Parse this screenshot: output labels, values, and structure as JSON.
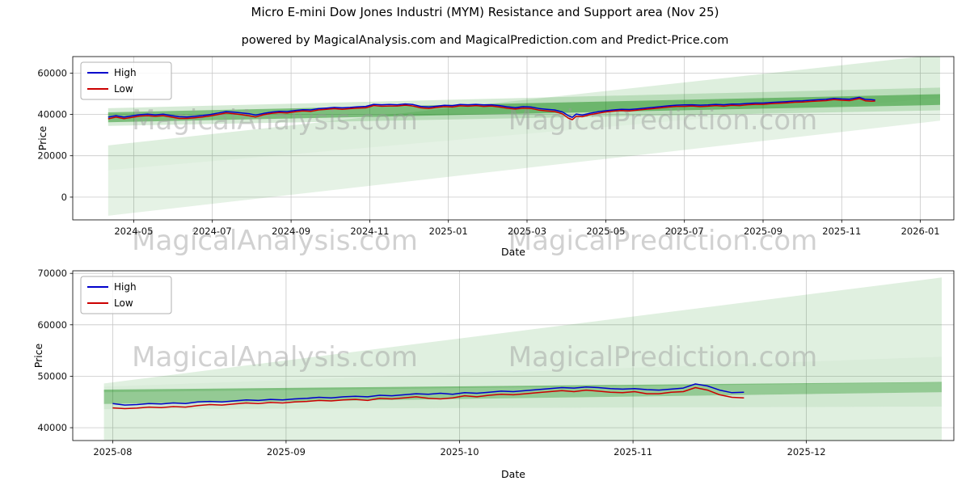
{
  "figure": {
    "title": "Micro E-mini Dow Jones Industri (MYM) Resistance and Support area (Nov 25)",
    "subtitle": "powered by MagicalAnalysis.com and MagicalPrediction.com and Predict-Price.com"
  },
  "watermarks": {
    "analysis": "MagicalAnalysis.com",
    "prediction": "MagicalPrediction.com"
  },
  "colors": {
    "high": "#0000cc",
    "low": "#cc0000",
    "band": "#008000",
    "grid": "#c8c8c8",
    "watermark": "#999999",
    "spine": "#000000"
  },
  "chart_data": [
    {
      "type": "line",
      "name": "price-history-full",
      "xlabel": "Date",
      "ylabel": "Price",
      "xlim": [
        2.45,
        24.85
      ],
      "ylim": [
        -11000,
        68000
      ],
      "legend": [
        "High",
        "Low"
      ],
      "xticks": [
        {
          "v": 4,
          "label": "2024-05"
        },
        {
          "v": 6,
          "label": "2024-07"
        },
        {
          "v": 8,
          "label": "2024-09"
        },
        {
          "v": 10,
          "label": "2024-11"
        },
        {
          "v": 12,
          "label": "2025-01"
        },
        {
          "v": 14,
          "label": "2025-03"
        },
        {
          "v": 16,
          "label": "2025-05"
        },
        {
          "v": 18,
          "label": "2025-07"
        },
        {
          "v": 20,
          "label": "2025-09"
        },
        {
          "v": 22,
          "label": "2025-11"
        },
        {
          "v": 24,
          "label": "2026-01"
        }
      ],
      "yticks": [
        {
          "v": 0,
          "label": "0"
        },
        {
          "v": 20000,
          "label": "20000"
        },
        {
          "v": 40000,
          "label": "40000"
        },
        {
          "v": 60000,
          "label": "60000"
        }
      ],
      "bands": [
        {
          "x": [
            3.35,
            24.5
          ],
          "top": [
            25000,
            69000
          ],
          "bottom": [
            13000,
            48000
          ],
          "opacity": 0.13
        },
        {
          "x": [
            3.35,
            24.5
          ],
          "top": [
            13000,
            48000
          ],
          "bottom": [
            -9000,
            37000
          ],
          "opacity": 0.1
        },
        {
          "x": [
            3.35,
            24.5
          ],
          "top": [
            43000,
            53000
          ],
          "bottom": [
            34500,
            42000
          ],
          "opacity": 0.16
        },
        {
          "x": [
            3.35,
            24.5
          ],
          "top": [
            41000,
            49800
          ],
          "bottom": [
            36200,
            44600
          ],
          "opacity": 0.42
        }
      ],
      "series": [
        {
          "name": "High",
          "colorKey": "high"
        },
        {
          "name": "Low",
          "colorKey": "low"
        }
      ],
      "points": [
        [
          3.35,
          38700,
          37900
        ],
        [
          3.55,
          39400,
          38700
        ],
        [
          3.75,
          38700,
          38000
        ],
        [
          3.95,
          39300,
          38600
        ],
        [
          4.15,
          39900,
          39200
        ],
        [
          4.35,
          40100,
          39400
        ],
        [
          4.55,
          39800,
          39100
        ],
        [
          4.75,
          40100,
          39400
        ],
        [
          4.95,
          39500,
          38800
        ],
        [
          5.15,
          38900,
          38100
        ],
        [
          5.35,
          38800,
          38100
        ],
        [
          5.55,
          39100,
          38400
        ],
        [
          5.75,
          39500,
          38800
        ],
        [
          5.95,
          40000,
          39300
        ],
        [
          6.15,
          40700,
          40000
        ],
        [
          6.35,
          41400,
          40700
        ],
        [
          6.55,
          41100,
          40300
        ],
        [
          6.75,
          40700,
          39900
        ],
        [
          6.95,
          40300,
          39300
        ],
        [
          7.1,
          39700,
          38800
        ],
        [
          7.3,
          40500,
          39900
        ],
        [
          7.5,
          41100,
          40500
        ],
        [
          7.7,
          41500,
          40900
        ],
        [
          7.9,
          41400,
          40700
        ],
        [
          8.1,
          41900,
          41300
        ],
        [
          8.3,
          42300,
          41700
        ],
        [
          8.5,
          42200,
          41500
        ],
        [
          8.7,
          42800,
          42200
        ],
        [
          8.9,
          43100,
          42500
        ],
        [
          9.1,
          43400,
          42800
        ],
        [
          9.3,
          43200,
          42500
        ],
        [
          9.5,
          43400,
          42800
        ],
        [
          9.7,
          43700,
          43100
        ],
        [
          9.9,
          43900,
          43200
        ],
        [
          10.1,
          44900,
          44300
        ],
        [
          10.3,
          44700,
          44000
        ],
        [
          10.5,
          44800,
          44100
        ],
        [
          10.7,
          44700,
          44100
        ],
        [
          10.9,
          45100,
          44500
        ],
        [
          11.1,
          44800,
          44100
        ],
        [
          11.3,
          43900,
          43200
        ],
        [
          11.5,
          43600,
          42900
        ],
        [
          11.7,
          44000,
          43400
        ],
        [
          11.9,
          44400,
          43800
        ],
        [
          12.1,
          44300,
          43600
        ],
        [
          12.3,
          44800,
          44200
        ],
        [
          12.5,
          44700,
          44000
        ],
        [
          12.7,
          44900,
          44300
        ],
        [
          12.9,
          44600,
          43900
        ],
        [
          13.1,
          44700,
          44100
        ],
        [
          13.3,
          44300,
          43600
        ],
        [
          13.5,
          43700,
          43000
        ],
        [
          13.7,
          43300,
          42600
        ],
        [
          13.9,
          43800,
          43100
        ],
        [
          14.1,
          43600,
          42900
        ],
        [
          14.3,
          42900,
          42100
        ],
        [
          14.5,
          42500,
          41700
        ],
        [
          14.7,
          42200,
          41400
        ],
        [
          14.9,
          41200,
          40300
        ],
        [
          15.05,
          39400,
          38200
        ],
        [
          15.15,
          38600,
          37500
        ],
        [
          15.25,
          40200,
          39100
        ],
        [
          15.4,
          39700,
          38900
        ],
        [
          15.6,
          40600,
          39900
        ],
        [
          15.8,
          41300,
          40600
        ],
        [
          16.0,
          41800,
          41200
        ],
        [
          16.2,
          42200,
          41600
        ],
        [
          16.4,
          42500,
          41900
        ],
        [
          16.6,
          42400,
          41700
        ],
        [
          16.8,
          42700,
          42100
        ],
        [
          17.0,
          43100,
          42500
        ],
        [
          17.2,
          43400,
          42800
        ],
        [
          17.4,
          43800,
          43200
        ],
        [
          17.6,
          44200,
          43600
        ],
        [
          17.8,
          44500,
          43900
        ],
        [
          18.0,
          44600,
          43900
        ],
        [
          18.2,
          44700,
          44100
        ],
        [
          18.4,
          44500,
          43800
        ],
        [
          18.6,
          44600,
          44000
        ],
        [
          18.8,
          44900,
          44300
        ],
        [
          19.0,
          44700,
          44000
        ],
        [
          19.2,
          45000,
          44400
        ],
        [
          19.4,
          45000,
          44300
        ],
        [
          19.6,
          45300,
          44700
        ],
        [
          19.8,
          45500,
          44900
        ],
        [
          20.0,
          45500,
          44900
        ],
        [
          20.2,
          45800,
          45200
        ],
        [
          20.4,
          46000,
          45400
        ],
        [
          20.6,
          46200,
          45600
        ],
        [
          20.8,
          46500,
          45900
        ],
        [
          21.0,
          46600,
          46000
        ],
        [
          21.2,
          46900,
          46300
        ],
        [
          21.4,
          47100,
          46500
        ],
        [
          21.6,
          47300,
          46700
        ],
        [
          21.8,
          47800,
          47200
        ],
        [
          22.0,
          47500,
          46900
        ],
        [
          22.2,
          47400,
          46700
        ],
        [
          22.45,
          48300,
          47700
        ],
        [
          22.6,
          47300,
          46600
        ],
        [
          22.75,
          47200,
          46400
        ],
        [
          22.85,
          47000,
          46500
        ]
      ]
    },
    {
      "type": "line",
      "name": "price-history-recent",
      "xlabel": "Date",
      "ylabel": "Price",
      "xlim": [
        18.77,
        23.85
      ],
      "ylim": [
        37500,
        70500
      ],
      "legend": [
        "High",
        "Low"
      ],
      "xticks": [
        {
          "v": 19,
          "label": "2025-08"
        },
        {
          "v": 20,
          "label": "2025-09"
        },
        {
          "v": 21,
          "label": "2025-10"
        },
        {
          "v": 22,
          "label": "2025-11"
        },
        {
          "v": 23,
          "label": "2025-12"
        }
      ],
      "yticks": [
        {
          "v": 40000,
          "label": "40000"
        },
        {
          "v": 50000,
          "label": "50000"
        },
        {
          "v": 60000,
          "label": "60000"
        },
        {
          "v": 70000,
          "label": "70000"
        }
      ],
      "bands": [
        {
          "x": [
            18.95,
            23.78
          ],
          "top": [
            48600,
            69200
          ],
          "bottom": [
            48000,
            53800
          ],
          "opacity": 0.12
        },
        {
          "x": [
            18.95,
            23.78
          ],
          "top": [
            48000,
            53800
          ],
          "bottom": [
            46900,
            48800
          ],
          "opacity": 0.15
        },
        {
          "x": [
            18.95,
            23.78
          ],
          "top": [
            47400,
            48900
          ],
          "bottom": [
            44600,
            46900
          ],
          "opacity": 0.42
        },
        {
          "x": [
            18.95,
            23.78
          ],
          "top": [
            44600,
            46900
          ],
          "bottom": [
            43600,
            44100
          ],
          "opacity": 0.18
        },
        {
          "x": [
            18.95,
            23.78
          ],
          "top": [
            43600,
            44100
          ],
          "bottom": [
            37600,
            36400
          ],
          "opacity": 0.12
        }
      ],
      "series": [
        {
          "name": "High",
          "colorKey": "high"
        },
        {
          "name": "Low",
          "colorKey": "low"
        }
      ],
      "points": [
        [
          19.0,
          44700,
          43850
        ],
        [
          19.07,
          44400,
          43700
        ],
        [
          19.14,
          44500,
          43800
        ],
        [
          19.21,
          44700,
          44000
        ],
        [
          19.28,
          44600,
          43900
        ],
        [
          19.35,
          44800,
          44100
        ],
        [
          19.42,
          44700,
          44000
        ],
        [
          19.49,
          45000,
          44300
        ],
        [
          19.56,
          45100,
          44500
        ],
        [
          19.63,
          45000,
          44400
        ],
        [
          19.7,
          45200,
          44600
        ],
        [
          19.77,
          45400,
          44800
        ],
        [
          19.84,
          45300,
          44700
        ],
        [
          19.91,
          45500,
          44900
        ],
        [
          19.98,
          45400,
          44800
        ],
        [
          20.05,
          45600,
          45000
        ],
        [
          20.12,
          45700,
          45100
        ],
        [
          20.19,
          45900,
          45300
        ],
        [
          20.26,
          45800,
          45200
        ],
        [
          20.33,
          46000,
          45400
        ],
        [
          20.4,
          46100,
          45500
        ],
        [
          20.47,
          46000,
          45300
        ],
        [
          20.54,
          46300,
          45700
        ],
        [
          20.61,
          46200,
          45600
        ],
        [
          20.68,
          46400,
          45800
        ],
        [
          20.75,
          46600,
          46000
        ],
        [
          20.82,
          46500,
          45700
        ],
        [
          20.89,
          46700,
          45600
        ],
        [
          20.96,
          46500,
          45800
        ],
        [
          21.03,
          46800,
          46200
        ],
        [
          21.1,
          46700,
          46000
        ],
        [
          21.17,
          46900,
          46300
        ],
        [
          21.24,
          47100,
          46500
        ],
        [
          21.31,
          47000,
          46400
        ],
        [
          21.38,
          47200,
          46600
        ],
        [
          21.45,
          47400,
          46800
        ],
        [
          21.52,
          47600,
          47000
        ],
        [
          21.59,
          47800,
          47200
        ],
        [
          21.66,
          47700,
          47000
        ],
        [
          21.73,
          47900,
          47300
        ],
        [
          21.8,
          47800,
          47100
        ],
        [
          21.87,
          47600,
          46900
        ],
        [
          21.94,
          47500,
          46800
        ],
        [
          22.01,
          47600,
          47000
        ],
        [
          22.08,
          47400,
          46600
        ],
        [
          22.15,
          47300,
          46600
        ],
        [
          22.22,
          47500,
          46900
        ],
        [
          22.29,
          47700,
          47000
        ],
        [
          22.36,
          48500,
          47800
        ],
        [
          22.43,
          48100,
          47300
        ],
        [
          22.5,
          47300,
          46400
        ],
        [
          22.57,
          46800,
          45900
        ],
        [
          22.64,
          46900,
          45800
        ]
      ]
    }
  ]
}
